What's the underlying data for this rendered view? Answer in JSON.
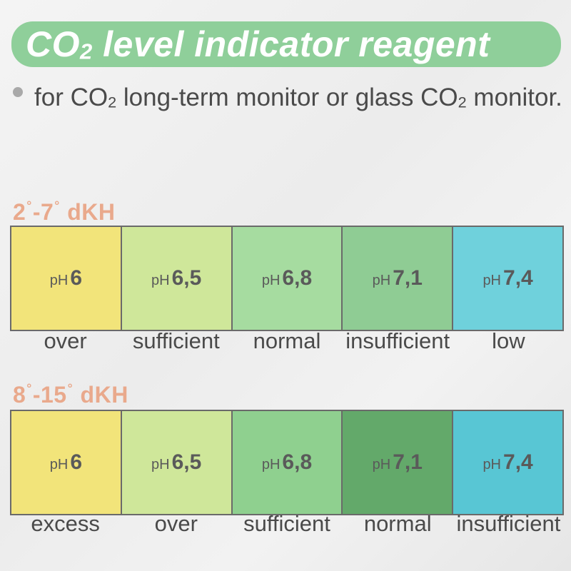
{
  "header": {
    "title_prefix": "CO",
    "title_sub": "2",
    "title_rest": " level indicator reagent",
    "banner_color": "#8fcf9a"
  },
  "description": {
    "part1": "for CO",
    "sub1": "2",
    "part2": " long-term monitor or glass CO",
    "sub2": "2",
    "part3": " monitor."
  },
  "chart1": {
    "range_low": "2",
    "range_high": "7",
    "deg": "°",
    "unit": "dKH",
    "swatches": [
      {
        "prefix": "pH",
        "value": "6",
        "label": "over",
        "color": "#f2e47a"
      },
      {
        "prefix": "pH",
        "value": "6,5",
        "label": "sufficient",
        "color": "#cfe79a"
      },
      {
        "prefix": "pH",
        "value": "6,8",
        "label": "normal",
        "color": "#a6dca0"
      },
      {
        "prefix": "pH",
        "value": "7,1",
        "label": "insufficient",
        "color": "#8fcc94"
      },
      {
        "prefix": "pH",
        "value": "7,4",
        "label": "low",
        "color": "#6fd1dc"
      }
    ]
  },
  "chart2": {
    "range_low": "8",
    "range_high": "15",
    "deg": "°",
    "unit": "dKH",
    "swatches": [
      {
        "prefix": "pH",
        "value": "6",
        "label": "excess",
        "color": "#f2e47a"
      },
      {
        "prefix": "pH",
        "value": "6,5",
        "label": "over",
        "color": "#cfe79a"
      },
      {
        "prefix": "pH",
        "value": "6,8",
        "label": "sufficient",
        "color": "#8fd08f"
      },
      {
        "prefix": "pH",
        "value": "7,1",
        "label": "normal",
        "color": "#63a96a"
      },
      {
        "prefix": "pH",
        "value": "7,4",
        "label": "insufficient",
        "color": "#58c6d4"
      }
    ]
  }
}
